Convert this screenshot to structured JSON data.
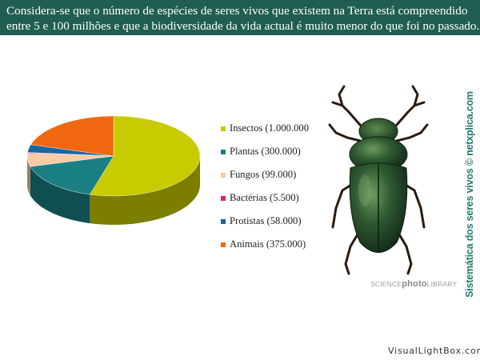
{
  "banner": {
    "line1": "Considera-se que o número de espécies de seres vivos que existem na Terra está compreendido",
    "line2": "entre 5 e 100 milhões e que a biodiversidade da vida actual é muito menor do que foi no passado."
  },
  "chart_data": {
    "type": "pie",
    "categories": [
      "Insectos",
      "Plantas",
      "Fungos",
      "Bactérias",
      "Protistas",
      "Animais"
    ],
    "values": [
      1000000,
      300000,
      99000,
      5500,
      58000,
      375000
    ],
    "colors": [
      "#c8cb00",
      "#1a7f82",
      "#f7cba3",
      "#e0217a",
      "#1967a0",
      "#f0680f"
    ],
    "legend": [
      {
        "label": "Insectos (1.000.000",
        "color": "#c8cb00"
      },
      {
        "label": "Plantas (300.000)",
        "color": "#1a7f82"
      },
      {
        "label": "Fungos (99.000)",
        "color": "#f7cba3"
      },
      {
        "label": "Bactérias (5.500)",
        "color": "#e0217a"
      },
      {
        "label": "Protistas (58.000)",
        "color": "#1967a0"
      },
      {
        "label": "Animais (375.000)",
        "color": "#f0680f"
      }
    ],
    "style": "3d",
    "legend_position": "right"
  },
  "image": {
    "subject": "beetle-photo",
    "credit_prefix": "SCIENCE",
    "credit_bold": "photo",
    "credit_suffix": "LIBRARY"
  },
  "side_caption": "Sistemática dos seres vivos © netxplica.com",
  "watermark": "VisualLightBox.com"
}
